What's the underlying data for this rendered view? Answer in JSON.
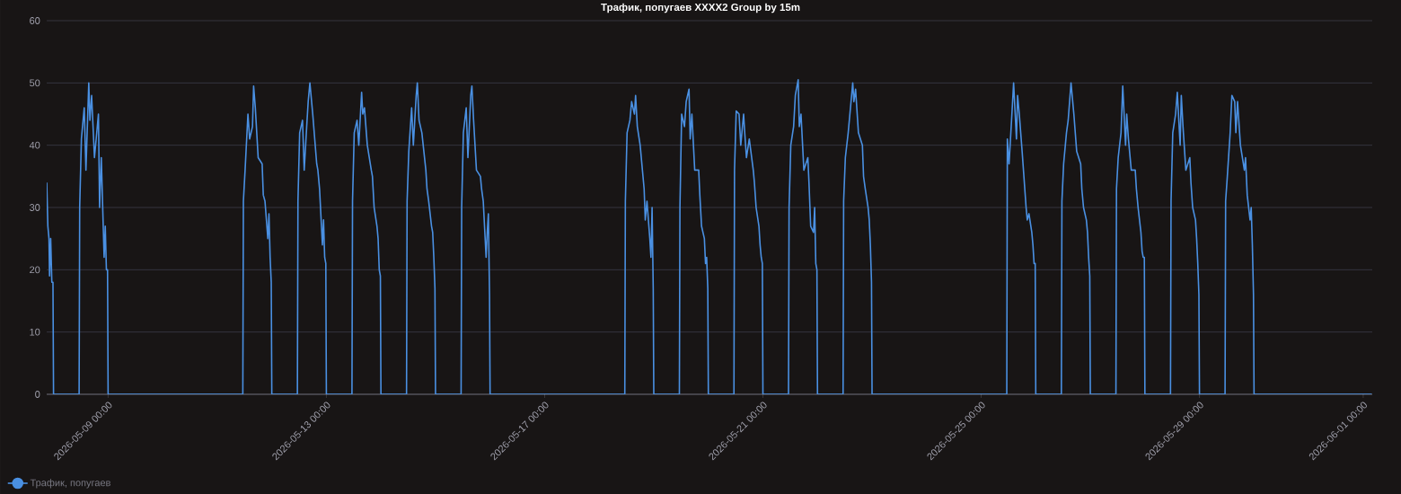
{
  "chart_data": {
    "type": "line",
    "title": "Трафик, попугаев     XXXX2     Group by 15m",
    "xlim": [
      "2026-05-07T21:00",
      "2026-06-01T04:00"
    ],
    "xticks": [
      {
        "value": "2026-05-09T00:00",
        "label": "2026-05-09 00:00"
      },
      {
        "value": "2026-05-13T00:00",
        "label": "2026-05-13 00:00"
      },
      {
        "value": "2026-05-17T00:00",
        "label": "2026-05-17 00:00"
      },
      {
        "value": "2026-05-21T00:00",
        "label": "2026-05-21 00:00"
      },
      {
        "value": "2026-05-25T00:00",
        "label": "2026-05-25 00:00"
      },
      {
        "value": "2026-05-29T00:00",
        "label": "2026-05-29 00:00"
      },
      {
        "value": "2026-06-01T00:00",
        "label": "2026-06-01 00:00"
      }
    ],
    "ylim": [
      0,
      60
    ],
    "yticks": [
      0,
      10,
      20,
      30,
      40,
      50,
      60
    ],
    "grid": "y",
    "legend": "bottom left",
    "series": [
      {
        "name": "Трафик, попугаев",
        "color": "#4a90e2",
        "x": [
          "2026-05-07T21:00",
          "2026-05-07T21:30",
          "2026-05-07T22:00",
          "2026-05-07T22:15",
          "2026-05-07T22:45",
          "2026-05-07T23:15",
          "2026-05-07T23:45",
          "2026-05-08T00:00",
          "2026-05-08T11:15",
          "2026-05-08T11:30",
          "2026-05-08T12:15",
          "2026-05-08T13:30",
          "2026-05-08T14:15",
          "2026-05-08T15:30",
          "2026-05-08T16:00",
          "2026-05-08T16:45",
          "2026-05-08T18:00",
          "2026-05-08T19:45",
          "2026-05-08T20:15",
          "2026-05-08T21:00",
          "2026-05-08T22:15",
          "2026-05-08T22:45",
          "2026-05-08T23:15",
          "2026-05-08T23:45",
          "2026-05-09T00:00",
          "2026-05-11T11:15",
          "2026-05-11T11:30",
          "2026-05-11T12:15",
          "2026-05-11T13:30",
          "2026-05-11T14:15",
          "2026-05-11T15:30",
          "2026-05-11T16:00",
          "2026-05-11T16:45",
          "2026-05-11T18:00",
          "2026-05-11T19:45",
          "2026-05-11T20:15",
          "2026-05-11T21:00",
          "2026-05-11T22:15",
          "2026-05-11T22:45",
          "2026-05-11T23:15",
          "2026-05-11T23:45",
          "2026-05-12T00:00",
          "2026-05-12T11:15",
          "2026-05-12T11:30",
          "2026-05-12T12:15",
          "2026-05-12T13:30",
          "2026-05-12T14:15",
          "2026-05-12T15:30",
          "2026-05-12T16:00",
          "2026-05-12T16:45",
          "2026-05-12T18:00",
          "2026-05-12T19:45",
          "2026-05-12T20:15",
          "2026-05-12T21:00",
          "2026-05-12T22:15",
          "2026-05-12T22:45",
          "2026-05-12T23:15",
          "2026-05-12T23:45",
          "2026-05-13T00:00",
          "2026-05-13T11:15",
          "2026-05-13T11:30",
          "2026-05-13T12:15",
          "2026-05-13T13:30",
          "2026-05-13T14:15",
          "2026-05-13T15:30",
          "2026-05-13T16:00",
          "2026-05-13T16:45",
          "2026-05-13T18:00",
          "2026-05-13T19:45",
          "2026-05-13T20:15",
          "2026-05-13T21:00",
          "2026-05-13T22:15",
          "2026-05-13T22:45",
          "2026-05-13T23:15",
          "2026-05-13T23:45",
          "2026-05-14T00:00",
          "2026-05-14T11:15",
          "2026-05-14T11:30",
          "2026-05-14T12:15",
          "2026-05-14T13:30",
          "2026-05-14T14:15",
          "2026-05-14T15:30",
          "2026-05-14T16:00",
          "2026-05-14T16:45",
          "2026-05-14T18:00",
          "2026-05-14T19:45",
          "2026-05-14T20:15",
          "2026-05-14T21:00",
          "2026-05-14T22:15",
          "2026-05-14T22:45",
          "2026-05-14T23:15",
          "2026-05-14T23:45",
          "2026-05-15T00:00",
          "2026-05-15T11:15",
          "2026-05-15T11:30",
          "2026-05-15T12:15",
          "2026-05-15T13:30",
          "2026-05-15T14:15",
          "2026-05-15T15:30",
          "2026-05-15T16:00",
          "2026-05-15T16:45",
          "2026-05-15T18:00",
          "2026-05-15T19:45",
          "2026-05-15T20:15",
          "2026-05-15T21:00",
          "2026-05-15T22:15",
          "2026-05-15T22:45",
          "2026-05-15T23:15",
          "2026-05-15T23:45",
          "2026-05-16T00:00",
          "2026-05-18T11:15",
          "2026-05-18T11:30",
          "2026-05-18T12:15",
          "2026-05-18T13:30",
          "2026-05-18T14:15",
          "2026-05-18T15:30",
          "2026-05-18T16:00",
          "2026-05-18T16:45",
          "2026-05-18T18:00",
          "2026-05-18T19:45",
          "2026-05-18T20:15",
          "2026-05-18T21:00",
          "2026-05-18T22:15",
          "2026-05-18T22:45",
          "2026-05-18T23:15",
          "2026-05-18T23:45",
          "2026-05-19T00:00",
          "2026-05-19T11:15",
          "2026-05-19T11:30",
          "2026-05-19T12:15",
          "2026-05-19T13:30",
          "2026-05-19T14:15",
          "2026-05-19T15:30",
          "2026-05-19T16:00",
          "2026-05-19T16:45",
          "2026-05-19T18:00",
          "2026-05-19T19:45",
          "2026-05-19T20:15",
          "2026-05-19T21:00",
          "2026-05-19T22:15",
          "2026-05-19T22:45",
          "2026-05-19T23:15",
          "2026-05-19T23:45",
          "2026-05-20T00:00",
          "2026-05-20T11:15",
          "2026-05-20T11:30",
          "2026-05-20T12:15",
          "2026-05-20T13:30",
          "2026-05-20T14:15",
          "2026-05-20T15:30",
          "2026-05-20T16:00",
          "2026-05-20T16:45",
          "2026-05-20T18:00",
          "2026-05-20T19:45",
          "2026-05-20T20:15",
          "2026-05-20T21:00",
          "2026-05-20T22:15",
          "2026-05-20T22:45",
          "2026-05-20T23:15",
          "2026-05-20T23:45",
          "2026-05-21T00:00",
          "2026-05-21T11:15",
          "2026-05-21T11:30",
          "2026-05-21T12:15",
          "2026-05-21T13:30",
          "2026-05-21T14:15",
          "2026-05-21T15:30",
          "2026-05-21T16:00",
          "2026-05-21T16:45",
          "2026-05-21T18:00",
          "2026-05-21T19:45",
          "2026-05-21T20:15",
          "2026-05-21T21:00",
          "2026-05-21T22:15",
          "2026-05-21T22:45",
          "2026-05-21T23:15",
          "2026-05-21T23:45",
          "2026-05-22T00:00",
          "2026-05-22T11:15",
          "2026-05-22T11:30",
          "2026-05-22T12:15",
          "2026-05-22T13:30",
          "2026-05-22T14:15",
          "2026-05-22T15:30",
          "2026-05-22T16:00",
          "2026-05-22T16:45",
          "2026-05-22T18:00",
          "2026-05-22T19:45",
          "2026-05-22T20:15",
          "2026-05-22T21:00",
          "2026-05-22T22:15",
          "2026-05-22T22:45",
          "2026-05-22T23:15",
          "2026-05-22T23:45",
          "2026-05-23T00:00",
          "2026-05-25T11:15",
          "2026-05-25T11:30",
          "2026-05-25T12:15",
          "2026-05-25T13:30",
          "2026-05-25T14:15",
          "2026-05-25T15:30",
          "2026-05-25T16:00",
          "2026-05-25T16:45",
          "2026-05-25T18:00",
          "2026-05-25T19:45",
          "2026-05-25T20:15",
          "2026-05-25T21:00",
          "2026-05-25T22:15",
          "2026-05-25T22:45",
          "2026-05-25T23:15",
          "2026-05-25T23:45",
          "2026-05-26T00:00",
          "2026-05-26T11:15",
          "2026-05-26T11:30",
          "2026-05-26T12:15",
          "2026-05-26T13:30",
          "2026-05-26T14:15",
          "2026-05-26T15:30",
          "2026-05-26T16:00",
          "2026-05-26T16:45",
          "2026-05-26T18:00",
          "2026-05-26T19:45",
          "2026-05-26T20:15",
          "2026-05-26T21:00",
          "2026-05-26T22:15",
          "2026-05-26T22:45",
          "2026-05-26T23:15",
          "2026-05-26T23:45",
          "2026-05-27T00:00",
          "2026-05-27T11:15",
          "2026-05-27T11:30",
          "2026-05-27T12:15",
          "2026-05-27T13:30",
          "2026-05-27T14:15",
          "2026-05-27T15:30",
          "2026-05-27T16:00",
          "2026-05-27T16:45",
          "2026-05-27T18:00",
          "2026-05-27T19:45",
          "2026-05-27T20:15",
          "2026-05-27T21:00",
          "2026-05-27T22:15",
          "2026-05-27T22:45",
          "2026-05-27T23:15",
          "2026-05-27T23:45",
          "2026-05-28T00:00",
          "2026-05-28T11:15",
          "2026-05-28T11:30",
          "2026-05-28T12:15",
          "2026-05-28T13:30",
          "2026-05-28T14:15",
          "2026-05-28T15:30",
          "2026-05-28T16:00",
          "2026-05-28T16:45",
          "2026-05-28T18:00",
          "2026-05-28T19:45",
          "2026-05-28T20:15",
          "2026-05-28T21:00",
          "2026-05-28T22:15",
          "2026-05-28T22:45",
          "2026-05-28T23:15",
          "2026-05-28T23:45",
          "2026-05-29T00:00",
          "2026-05-29T11:15",
          "2026-05-29T11:30",
          "2026-05-29T12:15",
          "2026-05-29T13:30",
          "2026-05-29T14:15",
          "2026-05-29T15:30",
          "2026-05-29T16:00",
          "2026-05-29T16:45",
          "2026-05-29T18:00",
          "2026-05-29T19:45",
          "2026-05-29T20:15",
          "2026-05-29T21:00",
          "2026-05-29T22:15",
          "2026-05-29T22:45",
          "2026-05-29T23:15",
          "2026-05-29T23:45",
          "2026-05-30T00:00",
          "2026-06-01T03:45"
        ],
        "values": [
          34,
          27,
          25,
          19,
          25,
          18,
          18,
          0,
          0,
          30,
          41,
          46,
          36,
          50,
          44,
          48,
          38,
          45,
          30,
          38,
          22,
          27,
          20,
          20,
          0,
          0,
          31,
          36,
          45,
          41,
          43,
          49.5,
          46,
          38,
          37,
          32,
          31,
          25,
          29,
          22,
          18,
          0,
          0,
          31,
          42,
          44,
          36,
          44,
          47,
          50,
          45,
          37,
          36,
          33,
          24,
          28,
          22,
          21,
          0,
          0,
          31,
          42,
          44,
          40,
          48.5,
          45,
          46,
          40,
          36,
          35,
          30,
          27,
          25,
          20,
          19,
          0,
          0,
          31,
          39,
          46,
          40,
          48,
          50,
          44,
          42,
          36,
          33,
          31,
          27,
          26,
          22,
          17,
          0,
          0,
          30,
          42,
          46,
          38,
          48,
          49.5,
          44,
          36,
          35,
          33,
          31,
          22,
          26,
          29,
          16,
          0,
          0,
          31,
          42,
          44,
          47,
          45,
          48,
          43,
          40,
          33,
          28,
          31,
          25,
          22,
          30,
          17,
          0,
          0,
          30,
          45,
          43,
          47,
          49,
          41,
          45,
          36,
          36,
          32,
          27,
          25,
          21,
          22,
          17,
          0,
          0,
          36,
          45.5,
          45,
          40,
          45,
          42,
          38,
          41,
          36,
          34,
          30,
          27,
          24,
          22,
          21,
          0,
          0,
          30,
          40,
          43,
          48,
          50.5,
          43,
          45,
          36,
          38,
          34,
          27,
          26,
          30,
          21,
          20,
          0,
          0,
          31,
          38,
          42,
          45,
          50,
          47,
          49,
          42,
          40,
          35,
          33,
          30,
          28,
          24,
          18,
          0,
          0,
          41,
          37,
          45,
          50,
          41,
          48,
          45,
          39,
          30,
          28,
          29,
          26,
          24,
          21,
          21,
          0,
          0,
          31,
          37,
          42,
          44,
          50,
          48,
          45,
          39,
          37,
          33,
          30,
          28,
          26,
          22,
          19,
          0,
          0,
          33,
          38,
          42,
          49.5,
          40,
          45,
          41,
          36,
          36,
          33,
          30,
          26,
          23,
          22,
          22,
          0,
          0,
          31,
          42,
          45,
          48.5,
          40,
          48,
          43,
          36,
          38,
          34,
          30,
          28,
          25,
          21,
          16,
          0,
          0,
          31,
          35,
          42,
          48,
          47,
          42,
          47,
          40,
          36,
          38,
          32,
          28,
          30,
          24,
          16,
          0,
          0
        ]
      }
    ]
  }
}
